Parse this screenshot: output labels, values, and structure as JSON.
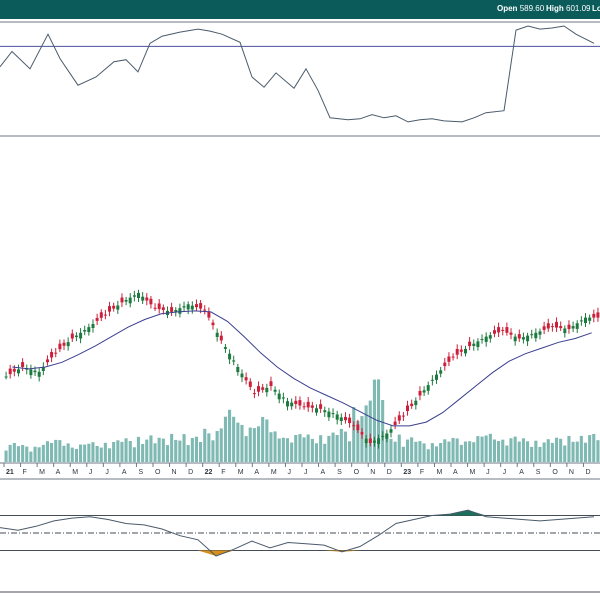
{
  "header": {
    "open_label": "Open",
    "open_value": "589.60",
    "high_label": "High",
    "high_value": "601.09",
    "low_label_partial": "Lo"
  },
  "colors": {
    "header_bg": "#0b5b5b",
    "up_candle": "#1c7a3e",
    "down_candle": "#cc1f3a",
    "volume": "#7fb9b3",
    "moving_average": "#3a3f8f",
    "indicator_line": "#4a5a6a",
    "reference_line": "#4a4fa0",
    "fill_positive": "#1e6e5c",
    "fill_negative": "#d9901a"
  },
  "chart_data": [
    {
      "type": "line",
      "title": "",
      "description_panel": "upper indicator",
      "ylim": [
        0,
        100
      ],
      "reference_level": 80,
      "x": [
        0,
        2,
        5,
        8,
        10,
        13,
        16,
        19,
        21,
        23,
        25,
        27,
        30,
        33,
        35,
        37,
        40,
        42,
        44,
        46,
        49,
        51,
        53,
        55,
        58,
        60,
        62,
        64,
        66,
        68,
        70,
        72,
        74,
        77,
        79,
        81,
        84,
        86,
        88,
        90,
        92,
        94,
        96,
        99
      ],
      "values": [
        60,
        75,
        58,
        92,
        68,
        42,
        50,
        65,
        67,
        55,
        83,
        90,
        94,
        97,
        95,
        92,
        84,
        50,
        40,
        54,
        39,
        58,
        37,
        10,
        8,
        9,
        13,
        10,
        12,
        6,
        8,
        9,
        7,
        6,
        10,
        15,
        17,
        96,
        100,
        97,
        98,
        100,
        92,
        83
      ]
    },
    {
      "type": "bar",
      "description_panel": "price candlesticks with volume and moving average",
      "x_tick_labels": [
        "21",
        "F",
        "M",
        "A",
        "M",
        "J",
        "J",
        "A",
        "S",
        "O",
        "N",
        "D",
        "22",
        "F",
        "M",
        "A",
        "M",
        "J",
        "J",
        "A",
        "S",
        "O",
        "N",
        "D",
        "23",
        "F",
        "M",
        "A",
        "M",
        "J",
        "J",
        "A",
        "S",
        "O",
        "N",
        "D"
      ],
      "price_close": [
        320,
        330,
        325,
        345,
        360,
        372,
        385,
        398,
        408,
        392,
        388,
        396,
        390,
        358,
        330,
        302,
        310,
        294,
        288,
        286,
        280,
        268,
        250,
        260,
        278,
        300,
        322,
        340,
        352,
        362,
        368,
        360,
        366,
        372,
        370,
        382
      ],
      "moving_average": [
        330,
        328,
        330,
        335,
        343,
        352,
        362,
        372,
        380,
        386,
        388,
        389,
        388,
        378,
        362,
        345,
        330,
        318,
        308,
        300,
        292,
        283,
        274,
        268,
        268,
        272,
        282,
        296,
        310,
        324,
        336,
        344,
        350,
        356,
        360,
        366
      ],
      "volume": [
        20,
        18,
        22,
        24,
        19,
        21,
        23,
        25,
        28,
        26,
        30,
        27,
        35,
        55,
        42,
        48,
        33,
        30,
        29,
        31,
        35,
        60,
        90,
        30,
        26,
        22,
        24,
        26,
        28,
        30,
        27,
        25,
        24,
        26,
        28,
        30
      ]
    },
    {
      "type": "area",
      "description_panel": "lower oscillator",
      "ylim": [
        -1,
        1
      ],
      "reference_levels": [
        0.65,
        0,
        -0.65
      ],
      "x": [
        0,
        3,
        6,
        9,
        12,
        15,
        18,
        21,
        24,
        27,
        30,
        33,
        36,
        39,
        42,
        45,
        48,
        51,
        54,
        57,
        60,
        63,
        66,
        69,
        72,
        75,
        78,
        81,
        84,
        87,
        90,
        93,
        96,
        99
      ],
      "values": [
        0.2,
        0.1,
        0.25,
        0.45,
        0.55,
        0.6,
        0.5,
        0.35,
        0.3,
        0.15,
        -0.1,
        -0.25,
        -0.85,
        -0.6,
        -0.3,
        -0.55,
        -0.35,
        -0.4,
        -0.45,
        -0.7,
        -0.5,
        -0.1,
        0.35,
        0.5,
        0.65,
        0.7,
        0.85,
        0.6,
        0.55,
        0.5,
        0.45,
        0.5,
        0.55,
        0.6
      ]
    }
  ]
}
